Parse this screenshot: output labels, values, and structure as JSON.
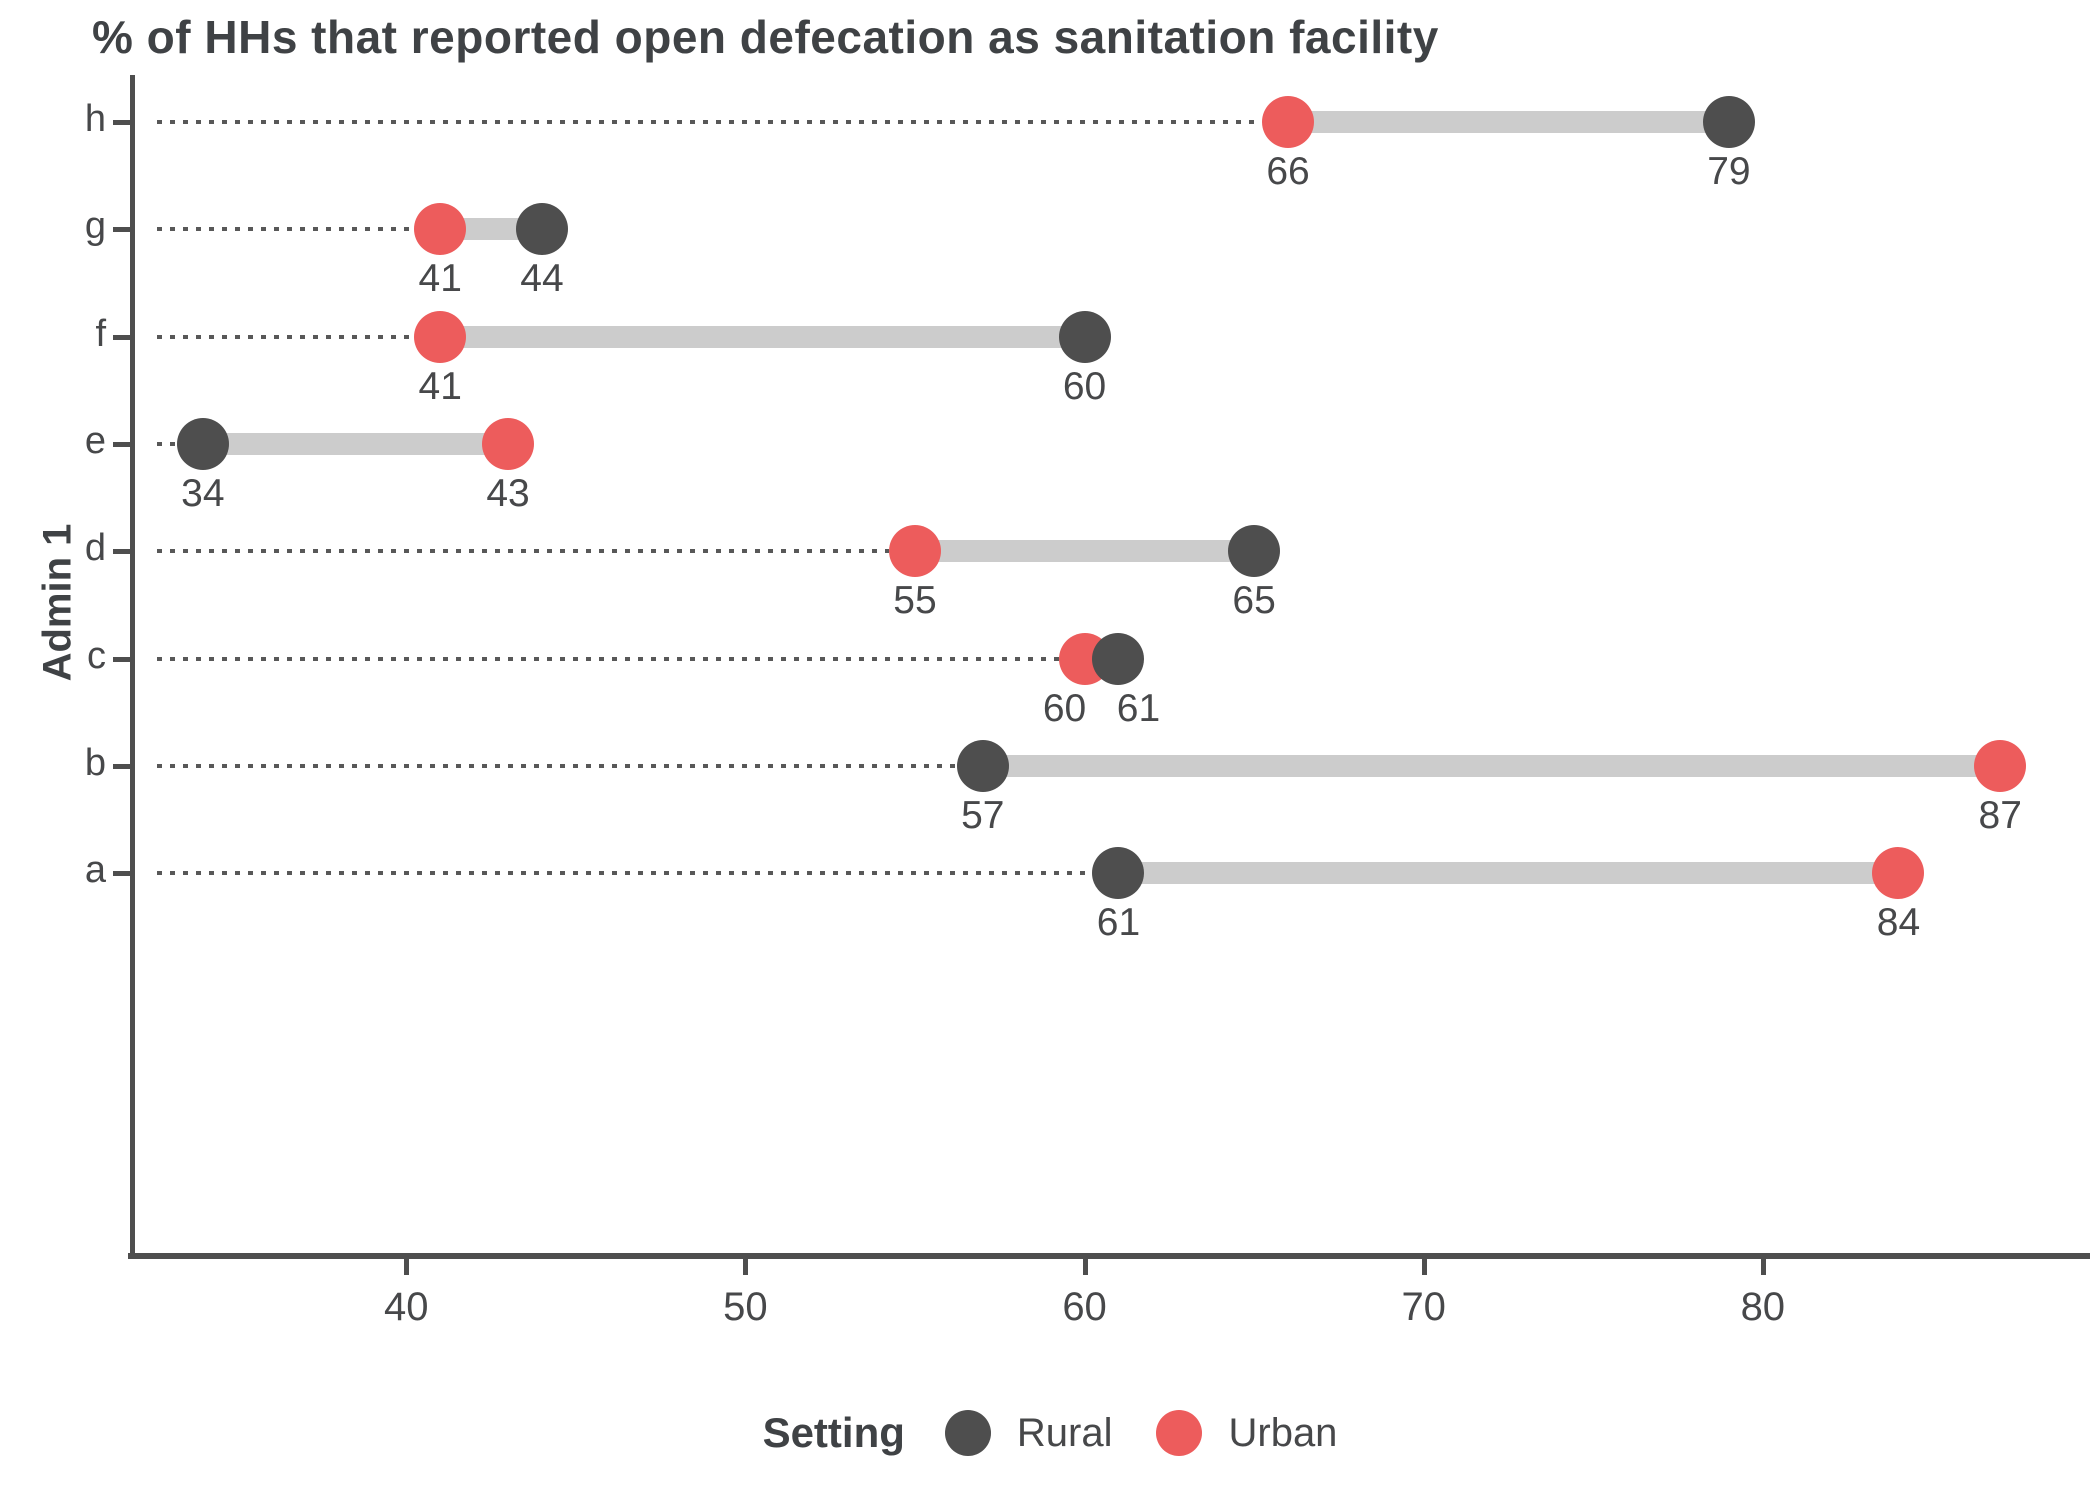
{
  "chart_data": {
    "type": "dumbbell",
    "title": "% of HHs that reported open defecation as sanitation facility",
    "xlabel": "",
    "ylabel": "Admin 1",
    "legend_title": "Setting",
    "legend_position": "bottom",
    "grid": false,
    "categories": [
      "h",
      "g",
      "f",
      "e",
      "d",
      "c",
      "b",
      "a"
    ],
    "series": [
      {
        "name": "Rural",
        "color": "#4e4e4e",
        "values": [
          79,
          44,
          60,
          34,
          65,
          61,
          57,
          61
        ]
      },
      {
        "name": "Urban",
        "color": "#ed5c5c",
        "values": [
          66,
          41,
          41,
          43,
          55,
          60,
          87,
          84
        ]
      }
    ],
    "x_ticks": [
      40,
      50,
      60,
      70,
      80
    ],
    "xlim": [
      32,
      89.5
    ],
    "colors": {
      "connector": "#cccccc",
      "leader_dots": "#585858",
      "axis": "#4e4e4e",
      "text": "#47484a"
    }
  }
}
